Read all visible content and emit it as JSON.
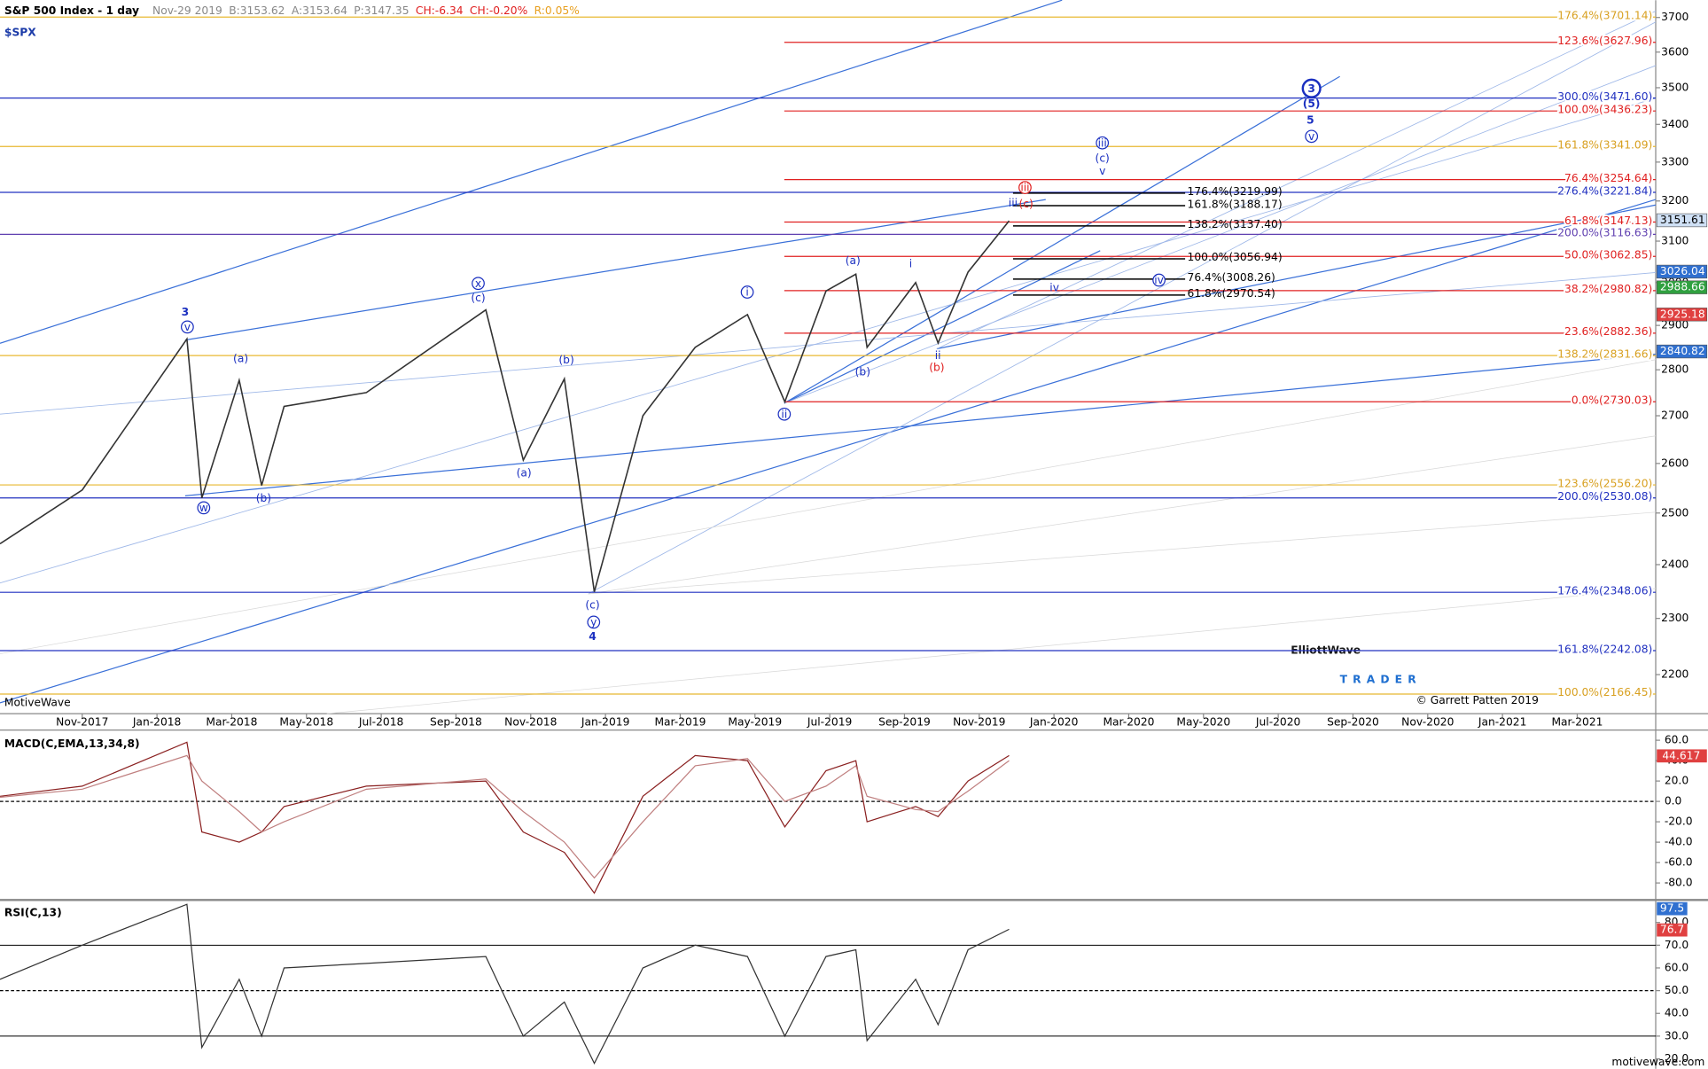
{
  "chart_data": {
    "type": "line",
    "title": "S&P 500 Index - 1 day",
    "symbol": "$SPX",
    "quote": [
      "Nov-29 2019",
      "B:3153.62",
      "A:3153.64",
      "P:3147.35",
      "CH:-6.34",
      "CH:-0.20%",
      "R:0.05%"
    ],
    "platform": "MotiveWave",
    "watermark": {
      "brand": "ElliottWave",
      "sub": "TRADER",
      "credit": "© Garrett Patten 2019"
    },
    "site": "motivewave.com",
    "log_scale": true,
    "xlim": [
      -2.2,
      42.1
    ],
    "xticks": [
      {
        "value": 0,
        "label": "Nov-2017"
      },
      {
        "value": 2,
        "label": "Jan-2018"
      },
      {
        "value": 4,
        "label": "Mar-2018"
      },
      {
        "value": 6,
        "label": "May-2018"
      },
      {
        "value": 8,
        "label": "Jul-2018"
      },
      {
        "value": 10,
        "label": "Sep-2018"
      },
      {
        "value": 12,
        "label": "Nov-2018"
      },
      {
        "value": 14,
        "label": "Jan-2019"
      },
      {
        "value": 16,
        "label": "Mar-2019"
      },
      {
        "value": 18,
        "label": "May-2019"
      },
      {
        "value": 20,
        "label": "Jul-2019"
      },
      {
        "value": 22,
        "label": "Sep-2019"
      },
      {
        "value": 24,
        "label": "Nov-2019"
      },
      {
        "value": 26,
        "label": "Jan-2020"
      },
      {
        "value": 28,
        "label": "Mar-2020"
      },
      {
        "value": 30,
        "label": "May-2020"
      },
      {
        "value": 32,
        "label": "Jul-2020"
      },
      {
        "value": 34,
        "label": "Sep-2020"
      },
      {
        "value": 36,
        "label": "Nov-2020"
      },
      {
        "value": 38,
        "label": "Jan-2021"
      },
      {
        "value": 40,
        "label": "Mar-2021"
      }
    ],
    "ylim": [
      2133,
      3751
    ],
    "yticks": [
      2200,
      2300,
      2400,
      2500,
      2600,
      2700,
      2800,
      2900,
      3000,
      3100,
      3200,
      3300,
      3400,
      3500,
      3600,
      3700
    ],
    "x": [
      -2.2,
      0,
      2.8,
      3.2,
      4.2,
      4.8,
      5.4,
      7.6,
      10.8,
      11.8,
      12.9,
      13.7,
      15.0,
      16.4,
      17.8,
      18.8,
      19.9,
      20.7,
      21.0,
      22.3,
      22.9,
      23.7,
      24.8
    ],
    "series": [
      {
        "name": "SPX",
        "color": "#333333",
        "values": [
          2440,
          2546,
          2869,
          2530,
          2777,
          2555,
          2720,
          2750,
          2936,
          2607,
          2780,
          2349,
          2700,
          2850,
          2925,
          2730,
          2980,
          3020,
          2850,
          3000,
          2860,
          3025,
          3150
        ]
      }
    ],
    "levels": [
      {
        "label": "123.6%(3627.96)",
        "value": 3627.96,
        "color": "#e02020"
      },
      {
        "label": "100.0%(3436.23)",
        "value": 3436.23,
        "color": "#e02020"
      },
      {
        "label": "76.4%(3254.64)",
        "value": 3254.64,
        "color": "#e02020"
      },
      {
        "label": "61.8%(3147.13)",
        "value": 3147.13,
        "color": "#e02020"
      },
      {
        "label": "50.0%(3062.85)",
        "value": 3062.85,
        "color": "#e02020"
      },
      {
        "label": "38.2%(2980.82)",
        "value": 2980.82,
        "color": "#e02020"
      },
      {
        "label": "23.6%(2882.36)",
        "value": 2882.36,
        "color": "#e02020"
      },
      {
        "label": "0.0%(2730.03)",
        "value": 2730.03,
        "color": "#e02020"
      },
      {
        "label": "176.4%(3701.14)",
        "value": 3701.14,
        "color": "#e8b830"
      },
      {
        "label": "161.8%(3341.09)",
        "value": 3341.09,
        "color": "#e8b830"
      },
      {
        "label": "138.2%(2831.66)",
        "value": 2831.66,
        "color": "#e8b830"
      },
      {
        "label": "123.6%(2556.20)",
        "value": 2556.2,
        "color": "#e8b830"
      },
      {
        "label": "100.0%(2166.45)",
        "value": 2166.45,
        "color": "#e8b830"
      },
      {
        "label": "300.0%(3471.60)",
        "value": 3471.6,
        "color": "#2030c0"
      },
      {
        "label": "276.4%(3221.84)",
        "value": 3221.84,
        "color": "#2030c0"
      },
      {
        "label": "200.0%(3116.63)",
        "value": 3116.63,
        "color": "#6040b0"
      },
      {
        "label": "200.0%(2530.08)",
        "value": 2530.08,
        "color": "#2030c0"
      },
      {
        "label": "176.4%(2348.06)",
        "value": 2348.06,
        "color": "#2030c0"
      },
      {
        "label": "161.8%(2242.08)",
        "value": 2242.08,
        "color": "#2030c0"
      },
      {
        "label": "176.4%(3219.99)",
        "value": 3219.99,
        "color": "#000000"
      },
      {
        "label": "161.8%(3188.17)",
        "value": 3188.17,
        "color": "#000000"
      },
      {
        "label": "138.2%(3137.40)",
        "value": 3137.4,
        "color": "#000000"
      },
      {
        "label": "100.0%(3056.94)",
        "value": 3056.94,
        "color": "#000000"
      },
      {
        "label": "76.4%(3008.26)",
        "value": 3008.26,
        "color": "#000000"
      },
      {
        "label": "61.8%(2970.54)",
        "value": 2970.54,
        "color": "#000000"
      }
    ],
    "price_tags": [
      {
        "value": 3151.61,
        "color": "#cfe0f5"
      },
      {
        "value": 3026.04,
        "color": "#3070d0"
      },
      {
        "value": 2988.66,
        "color": "#30a040"
      },
      {
        "value": 2925.18,
        "color": "#e04040"
      },
      {
        "value": 2840.82,
        "color": "#3070d0"
      }
    ],
    "wave_labels": [
      {
        "text": "3",
        "color": "#1a2fc0",
        "style": "bold"
      },
      {
        "text": "v",
        "color": "#1a2fc0",
        "style": "circle"
      },
      {
        "text": "(a)",
        "color": "#1a2fc0",
        "style": "plain"
      },
      {
        "text": "w",
        "color": "#1a2fc0",
        "style": "circle"
      },
      {
        "text": "(b)",
        "color": "#1a2fc0",
        "style": "plain"
      },
      {
        "text": "x",
        "color": "#1a2fc0",
        "style": "circle"
      },
      {
        "text": "(c)",
        "color": "#1a2fc0",
        "style": "plain"
      },
      {
        "text": "(b)",
        "color": "#1a2fc0",
        "style": "plain"
      },
      {
        "text": "(a)",
        "color": "#1a2fc0",
        "style": "plain"
      },
      {
        "text": "(c)",
        "color": "#1a2fc0",
        "style": "plain"
      },
      {
        "text": "y",
        "color": "#1a2fc0",
        "style": "circle"
      },
      {
        "text": "4",
        "color": "#1a2fc0",
        "style": "bold"
      },
      {
        "text": "i",
        "color": "#1a2fc0",
        "style": "circle"
      },
      {
        "text": "ii",
        "color": "#1a2fc0",
        "style": "circle"
      },
      {
        "text": "(a)",
        "color": "#1a2fc0",
        "style": "plain"
      },
      {
        "text": "(b)",
        "color": "#1a2fc0",
        "style": "plain"
      },
      {
        "text": "i",
        "color": "#1a2fc0",
        "style": "plain"
      },
      {
        "text": "ii",
        "color": "#1a2fc0",
        "style": "plain"
      },
      {
        "text": "(b)",
        "color": "#e02020",
        "style": "plain"
      },
      {
        "text": "iii",
        "color": "#e02020",
        "style": "circle"
      },
      {
        "text": "(c)",
        "color": "#e02020",
        "style": "plain"
      },
      {
        "text": "iii",
        "color": "#1a2fc0",
        "style": "plain"
      },
      {
        "text": "iii",
        "color": "#1a2fc0",
        "style": "circle"
      },
      {
        "text": "(c)",
        "color": "#1a2fc0",
        "style": "plain"
      },
      {
        "text": "v",
        "color": "#1a2fc0",
        "style": "plain"
      },
      {
        "text": "iv",
        "color": "#1a2fc0",
        "style": "plain"
      },
      {
        "text": "iv",
        "color": "#1a2fc0",
        "style": "circle"
      },
      {
        "text": "3",
        "color": "#1a2fc0",
        "style": "bigcircle"
      },
      {
        "text": "(5)",
        "color": "#1a2fc0",
        "style": "bold"
      },
      {
        "text": "5",
        "color": "#1a2fc0",
        "style": "bold"
      },
      {
        "text": "v",
        "color": "#1a2fc0",
        "style": "circle"
      }
    ],
    "macd": {
      "title": "MACD(C,EMA,13,34,8)",
      "ylim": [
        -96.7,
        70
      ],
      "yticks": [
        {
          "value": 60,
          "label": "60.0"
        },
        {
          "value": 40,
          "label": "40.0"
        },
        {
          "value": 20,
          "label": "20.0"
        },
        {
          "value": 0,
          "label": "0.0"
        },
        {
          "value": -20,
          "label": "-20.0"
        },
        {
          "value": -40,
          "label": "-40.0"
        },
        {
          "value": -60,
          "label": "-60.0"
        },
        {
          "value": -80,
          "label": "-80.0"
        }
      ],
      "series": [
        {
          "name": "MACD",
          "color": "#8a2020",
          "values": [
            5,
            15,
            58,
            -30,
            -40,
            -30,
            -5,
            15,
            20,
            -30,
            -50,
            -90,
            5,
            45,
            40,
            -25,
            30,
            40,
            -20,
            -5,
            -15,
            20,
            45
          ]
        },
        {
          "name": "Signal",
          "color": "#c08080",
          "values": [
            4,
            12,
            45,
            20,
            -10,
            -30,
            -20,
            12,
            22,
            -10,
            -40,
            -75,
            -20,
            35,
            42,
            0,
            15,
            35,
            5,
            -8,
            -10,
            10,
            40
          ]
        }
      ],
      "tag": {
        "value": 44.617,
        "color": "#e04040"
      }
    },
    "rsi": {
      "title": "RSI(C,13)",
      "ylim": [
        15.6,
        89.9
      ],
      "yticks": [
        {
          "value": 80,
          "label": "80.0"
        },
        {
          "value": 70,
          "label": "70.0"
        },
        {
          "value": 60,
          "label": "60.0"
        },
        {
          "value": 50,
          "label": "50.0"
        },
        {
          "value": 40,
          "label": "40.0"
        },
        {
          "value": 30,
          "label": "30.0"
        },
        {
          "value": 20,
          "label": "20.0"
        }
      ],
      "series": [
        {
          "name": "RSI",
          "color": "#333333",
          "values": [
            55,
            70,
            88,
            25,
            55,
            30,
            60,
            62,
            65,
            30,
            45,
            18,
            60,
            70,
            65,
            30,
            65,
            68,
            28,
            55,
            35,
            68,
            77
          ]
        }
      ],
      "tags": [
        {
          "value": 97.5,
          "color": "#3070d0"
        },
        {
          "value": 76.7,
          "color": "#e04040"
        }
      ]
    }
  }
}
